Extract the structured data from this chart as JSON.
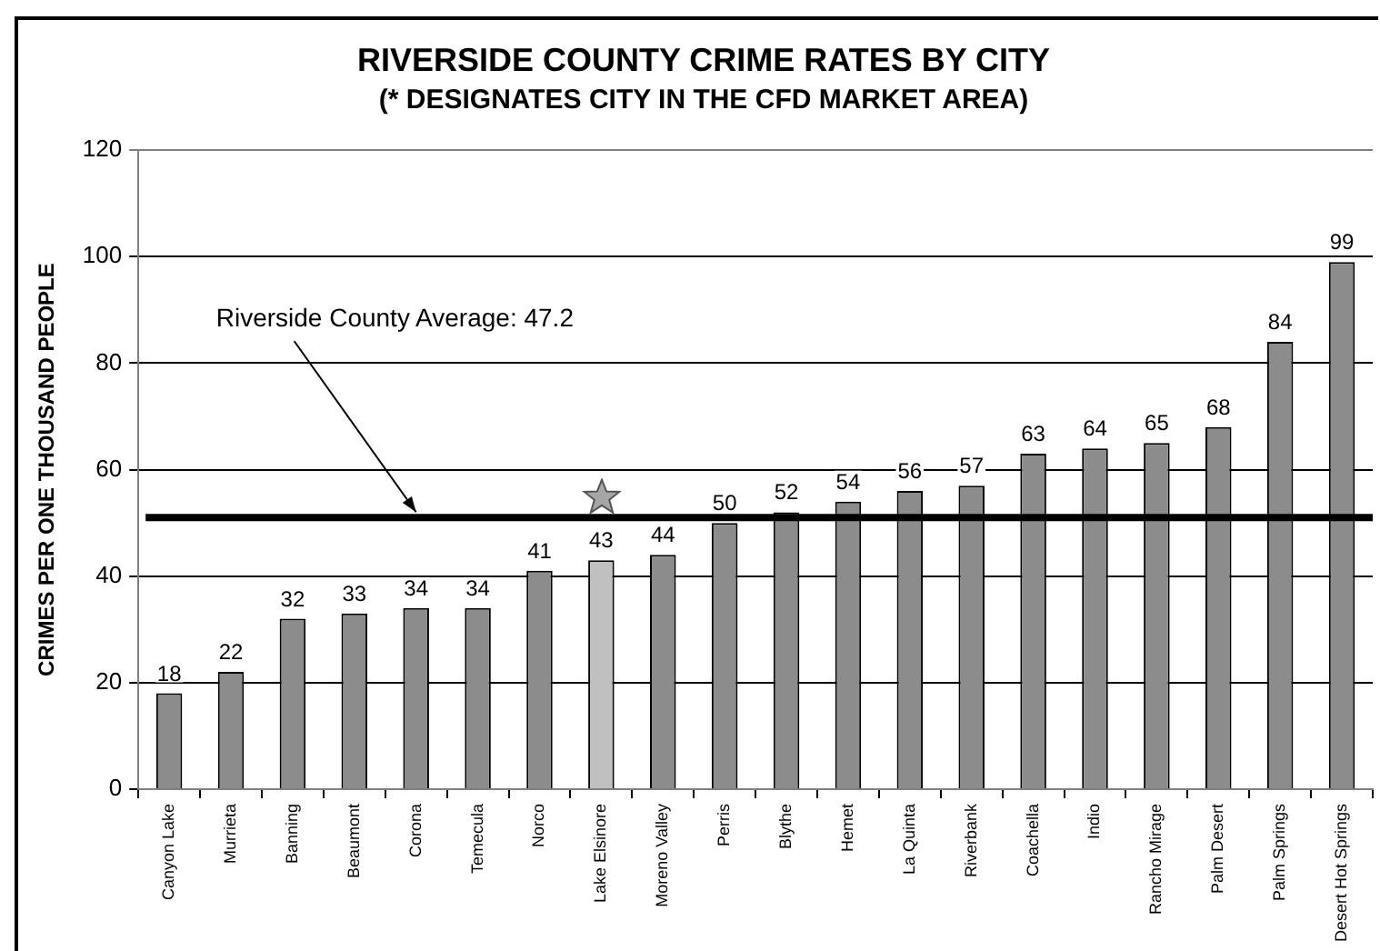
{
  "chart_data": {
    "type": "bar",
    "title": "RIVERSIDE COUNTY CRIME RATES BY CITY",
    "subtitle": "(* DESIGNATES CITY IN THE CFD MARKET AREA)",
    "ylabel": "CRIMES PER ONE THOUSAND PEOPLE",
    "categories": [
      "Canyon Lake",
      "Murrieta",
      "Banning",
      "Beaumont",
      "Corona",
      "Temecula",
      "Norco",
      "Lake Elsinore",
      "Moreno Valley",
      "Perris",
      "Blythe",
      "Hemet",
      "La Quinta",
      "Riverbank",
      "Coachella",
      "Indio",
      "Rancho Mirage",
      "Palm Desert",
      "Palm Springs",
      "Desert Hot Springs"
    ],
    "values": [
      18,
      22,
      32,
      33,
      34,
      34,
      41,
      43,
      44,
      50,
      52,
      54,
      56,
      57,
      63,
      64,
      65,
      68,
      84,
      99
    ],
    "colors": [
      "#8c8c8c",
      "#8c8c8c",
      "#8c8c8c",
      "#8c8c8c",
      "#8c8c8c",
      "#8c8c8c",
      "#8c8c8c",
      "#c0c0c0",
      "#8c8c8c",
      "#8c8c8c",
      "#8c8c8c",
      "#8c8c8c",
      "#8c8c8c",
      "#8c8c8c",
      "#8c8c8c",
      "#8c8c8c",
      "#8c8c8c",
      "#8c8c8c",
      "#8c8c8c",
      "#8c8c8c"
    ],
    "ylim": [
      0,
      120
    ],
    "yticks": [
      0,
      20,
      40,
      60,
      80,
      100,
      120
    ],
    "grid": "y",
    "data_labels": true,
    "ref_lines": [
      {
        "axis": "y",
        "value": 51,
        "color": "#000000"
      }
    ],
    "annotations": [
      {
        "text": "Riverside County Average: 47.2",
        "x": "Corona",
        "y": 51
      }
    ]
  }
}
